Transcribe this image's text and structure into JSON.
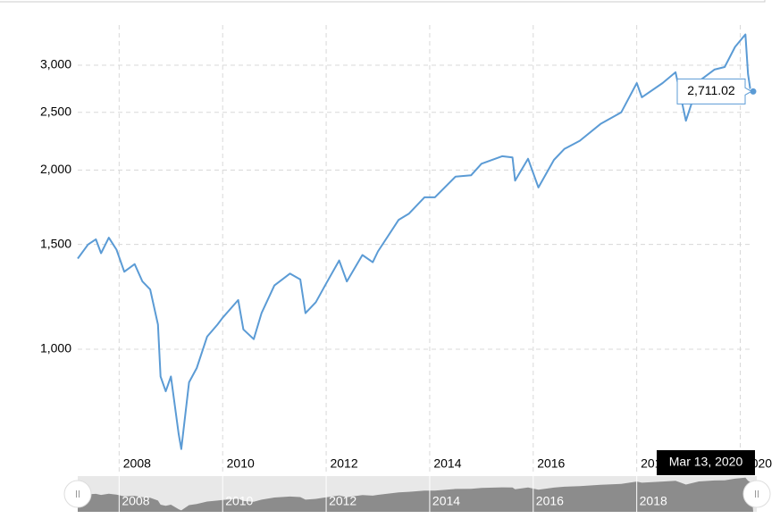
{
  "chart_data": {
    "type": "line",
    "log_scale": true,
    "grid": true,
    "x": [
      2007.2,
      2007.4,
      2007.55,
      2007.65,
      2007.8,
      2007.95,
      2008.1,
      2008.3,
      2008.45,
      2008.6,
      2008.75,
      2008.8,
      2008.9,
      2009.0,
      2009.15,
      2009.2,
      2009.35,
      2009.5,
      2009.7,
      2009.9,
      2010.0,
      2010.3,
      2010.4,
      2010.6,
      2010.75,
      2011.0,
      2011.3,
      2011.5,
      2011.6,
      2011.8,
      2012.0,
      2012.25,
      2012.4,
      2012.7,
      2012.9,
      2013.0,
      2013.4,
      2013.6,
      2013.9,
      2014.1,
      2014.5,
      2014.8,
      2015.0,
      2015.4,
      2015.6,
      2015.65,
      2015.9,
      2016.1,
      2016.4,
      2016.6,
      2016.9,
      2017.3,
      2017.7,
      2018.0,
      2018.1,
      2018.5,
      2018.75,
      2018.95,
      2019.2,
      2019.5,
      2019.7,
      2019.9,
      2020.1,
      2020.15,
      2020.2
    ],
    "series": [
      {
        "color": "#5b9bd5",
        "values": [
          1420,
          1500,
          1530,
          1450,
          1540,
          1470,
          1350,
          1390,
          1300,
          1260,
          1100,
          900,
          850,
          900,
          720,
          680,
          880,
          930,
          1050,
          1100,
          1130,
          1210,
          1080,
          1040,
          1150,
          1280,
          1340,
          1310,
          1150,
          1200,
          1290,
          1410,
          1300,
          1440,
          1400,
          1460,
          1650,
          1690,
          1800,
          1800,
          1950,
          1960,
          2050,
          2110,
          2100,
          1920,
          2090,
          1870,
          2080,
          2170,
          2240,
          2390,
          2500,
          2800,
          2650,
          2800,
          2920,
          2420,
          2820,
          2950,
          2980,
          3220,
          3380,
          2900,
          2711.02
        ]
      }
    ],
    "xlim": [
      2007.2,
      2020.25
    ],
    "xticks": [
      2008,
      2010,
      2012,
      2014,
      2016,
      2018,
      2020
    ],
    "ylim": [
      663,
      3505
    ],
    "yticks": [
      {
        "value": 1000,
        "label": "1,000"
      },
      {
        "value": 1500,
        "label": "1,500"
      },
      {
        "value": 2000,
        "label": "2,000"
      },
      {
        "value": 2500,
        "label": "2,500"
      },
      {
        "value": 3000,
        "label": "3,000"
      }
    ],
    "tooltip": {
      "value": 2711.02,
      "label": "2,711.02",
      "date": "Mar 13, 2020"
    }
  }
}
